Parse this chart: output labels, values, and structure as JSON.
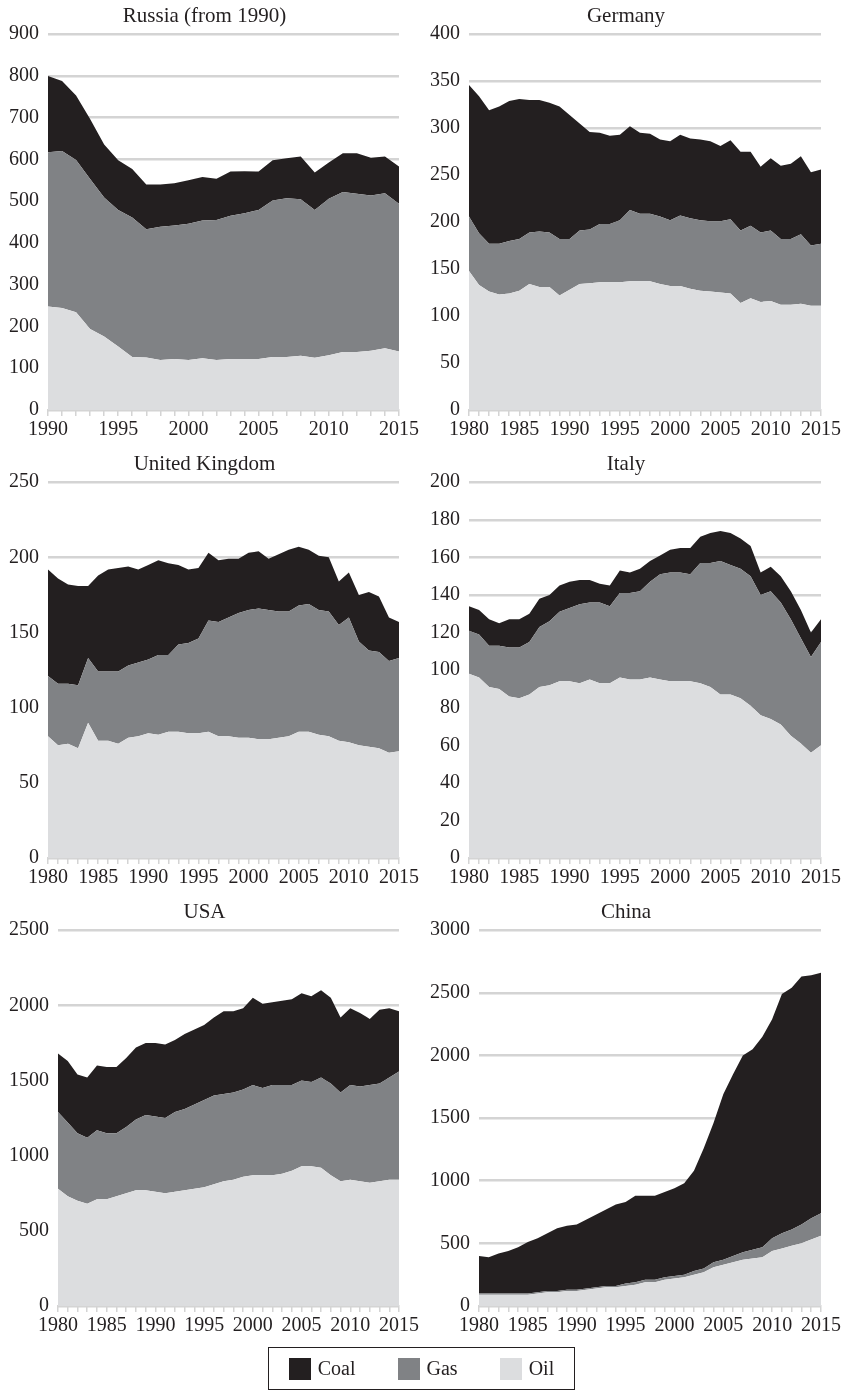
{
  "chart_data": [
    {
      "type": "area",
      "title": "Russia (from 1990)",
      "stacked": true,
      "grid": "y",
      "legend": "bottom",
      "x": [
        1990,
        1991,
        1992,
        1993,
        1994,
        1995,
        1996,
        1997,
        1998,
        1999,
        2000,
        2001,
        2002,
        2003,
        2004,
        2005,
        2006,
        2007,
        2008,
        2009,
        2010,
        2011,
        2012,
        2013,
        2014,
        2015
      ],
      "xlim": [
        1990,
        2015
      ],
      "xticks": [
        1990,
        {
          "value": 1991,
          "label": null
        },
        {
          "value": 1992,
          "label": null
        },
        {
          "value": 1993,
          "label": null
        },
        {
          "value": 1994,
          "label": null
        },
        1995,
        {
          "value": 1996,
          "label": null
        },
        {
          "value": 1997,
          "label": null
        },
        {
          "value": 1998,
          "label": null
        },
        {
          "value": 1999,
          "label": null
        },
        2000,
        {
          "value": 2001,
          "label": null
        },
        {
          "value": 2002,
          "label": null
        },
        {
          "value": 2003,
          "label": null
        },
        {
          "value": 2004,
          "label": null
        },
        2005,
        {
          "value": 2006,
          "label": null
        },
        {
          "value": 2007,
          "label": null
        },
        {
          "value": 2008,
          "label": null
        },
        {
          "value": 2009,
          "label": null
        },
        2010,
        {
          "value": 2011,
          "label": null
        },
        {
          "value": 2012,
          "label": null
        },
        {
          "value": 2013,
          "label": null
        },
        {
          "value": 2014,
          "label": null
        },
        2015
      ],
      "ylim": [
        0,
        900
      ],
      "yticks": [
        0,
        100,
        200,
        300,
        400,
        500,
        600,
        700,
        800,
        900
      ],
      "series": [
        {
          "name": "Oil",
          "color": "#dcdddf",
          "values": [
            248,
            244,
            234,
            194,
            176,
            152,
            127,
            126,
            120,
            122,
            120,
            124,
            120,
            122,
            122,
            122,
            127,
            127,
            130,
            125,
            131,
            139,
            139,
            142,
            148,
            140
          ]
        },
        {
          "name": "Gas",
          "color": "#808285",
          "values": [
            369,
            376,
            365,
            359,
            333,
            327,
            334,
            307,
            319,
            320,
            326,
            330,
            335,
            343,
            349,
            357,
            375,
            380,
            375,
            354,
            375,
            383,
            379,
            372,
            371,
            354
          ]
        },
        {
          "name": "Coal",
          "color": "#231f20",
          "values": [
            183,
            168,
            154,
            144,
            127,
            119,
            116,
            107,
            101,
            101,
            104,
            104,
            99,
            106,
            101,
            92,
            96,
            96,
            102,
            90,
            87,
            93,
            97,
            90,
            88,
            89
          ]
        }
      ]
    },
    {
      "type": "area",
      "title": "Germany",
      "stacked": true,
      "grid": "y",
      "x": [
        1980,
        1981,
        1982,
        1983,
        1984,
        1985,
        1986,
        1987,
        1988,
        1989,
        1990,
        1991,
        1992,
        1993,
        1994,
        1995,
        1996,
        1997,
        1998,
        1999,
        2000,
        2001,
        2002,
        2003,
        2004,
        2005,
        2006,
        2007,
        2008,
        2009,
        2010,
        2011,
        2012,
        2013,
        2014,
        2015
      ],
      "xlim": [
        1980,
        2015
      ],
      "xticks": [
        1980,
        {
          "value": 1981,
          "label": null
        },
        {
          "value": 1982,
          "label": null
        },
        {
          "value": 1983,
          "label": null
        },
        {
          "value": 1984,
          "label": null
        },
        1985,
        {
          "value": 1986,
          "label": null
        },
        {
          "value": 1987,
          "label": null
        },
        {
          "value": 1988,
          "label": null
        },
        {
          "value": 1989,
          "label": null
        },
        1990,
        {
          "value": 1991,
          "label": null
        },
        {
          "value": 1992,
          "label": null
        },
        {
          "value": 1993,
          "label": null
        },
        {
          "value": 1994,
          "label": null
        },
        1995,
        {
          "value": 1996,
          "label": null
        },
        {
          "value": 1997,
          "label": null
        },
        {
          "value": 1998,
          "label": null
        },
        {
          "value": 1999,
          "label": null
        },
        2000,
        {
          "value": 2001,
          "label": null
        },
        {
          "value": 2002,
          "label": null
        },
        {
          "value": 2003,
          "label": null
        },
        {
          "value": 2004,
          "label": null
        },
        2005,
        {
          "value": 2006,
          "label": null
        },
        {
          "value": 2007,
          "label": null
        },
        {
          "value": 2008,
          "label": null
        },
        {
          "value": 2009,
          "label": null
        },
        2010,
        {
          "value": 2011,
          "label": null
        },
        {
          "value": 2012,
          "label": null
        },
        {
          "value": 2013,
          "label": null
        },
        {
          "value": 2014,
          "label": null
        },
        2015
      ],
      "ylim": [
        0,
        400
      ],
      "yticks": [
        0,
        50,
        100,
        150,
        200,
        250,
        300,
        350,
        400
      ],
      "series": [
        {
          "color": "#dcdddf",
          "values": [
            148,
            133,
            126,
            123,
            124,
            127,
            134,
            131,
            131,
            122,
            128,
            134,
            135,
            136,
            136,
            136,
            137,
            137,
            137,
            134,
            132,
            132,
            129,
            127,
            126,
            125,
            124,
            114,
            119,
            115,
            116,
            112,
            112,
            113,
            111,
            111
          ]
        },
        {
          "color": "#808285",
          "values": [
            58,
            55,
            51,
            54,
            56,
            55,
            55,
            59,
            58,
            60,
            54,
            57,
            57,
            62,
            62,
            66,
            76,
            72,
            72,
            72,
            70,
            75,
            75,
            75,
            75,
            76,
            79,
            77,
            77,
            74,
            75,
            70,
            70,
            74,
            64,
            66
          ]
        },
        {
          "color": "#231f20",
          "values": [
            140,
            146,
            142,
            146,
            149,
            149,
            141,
            140,
            138,
            141,
            132,
            114,
            104,
            97,
            94,
            91,
            89,
            86,
            85,
            82,
            84,
            86,
            85,
            86,
            85,
            80,
            84,
            84,
            79,
            70,
            77,
            78,
            80,
            83,
            78,
            79
          ]
        }
      ]
    },
    {
      "type": "area",
      "title": "United Kingdom",
      "stacked": true,
      "grid": "y",
      "x": [
        1980,
        1981,
        1982,
        1983,
        1984,
        1985,
        1986,
        1987,
        1988,
        1989,
        1990,
        1991,
        1992,
        1993,
        1994,
        1995,
        1996,
        1997,
        1998,
        1999,
        2000,
        2001,
        2002,
        2003,
        2004,
        2005,
        2006,
        2007,
        2008,
        2009,
        2010,
        2011,
        2012,
        2013,
        2014,
        2015
      ],
      "xlim": [
        1980,
        2015
      ],
      "xticks": [
        1980,
        {
          "value": 1981,
          "label": null
        },
        {
          "value": 1982,
          "label": null
        },
        {
          "value": 1983,
          "label": null
        },
        {
          "value": 1984,
          "label": null
        },
        1985,
        {
          "value": 1986,
          "label": null
        },
        {
          "value": 1987,
          "label": null
        },
        {
          "value": 1988,
          "label": null
        },
        {
          "value": 1989,
          "label": null
        },
        1990,
        {
          "value": 1991,
          "label": null
        },
        {
          "value": 1992,
          "label": null
        },
        {
          "value": 1993,
          "label": null
        },
        {
          "value": 1994,
          "label": null
        },
        1995,
        {
          "value": 1996,
          "label": null
        },
        {
          "value": 1997,
          "label": null
        },
        {
          "value": 1998,
          "label": null
        },
        {
          "value": 1999,
          "label": null
        },
        2000,
        {
          "value": 2001,
          "label": null
        },
        {
          "value": 2002,
          "label": null
        },
        {
          "value": 2003,
          "label": null
        },
        {
          "value": 2004,
          "label": null
        },
        2005,
        {
          "value": 2006,
          "label": null
        },
        {
          "value": 2007,
          "label": null
        },
        {
          "value": 2008,
          "label": null
        },
        {
          "value": 2009,
          "label": null
        },
        2010,
        {
          "value": 2011,
          "label": null
        },
        {
          "value": 2012,
          "label": null
        },
        {
          "value": 2013,
          "label": null
        },
        {
          "value": 2014,
          "label": null
        },
        2015
      ],
      "ylim": [
        0,
        250
      ],
      "yticks": [
        0,
        50,
        100,
        150,
        200,
        250
      ],
      "series": [
        {
          "color": "#dcdddf",
          "values": [
            81,
            75,
            76,
            73,
            90,
            78,
            78,
            76,
            80,
            81,
            83,
            82,
            84,
            84,
            83,
            83,
            84,
            81,
            81,
            80,
            80,
            79,
            79,
            80,
            81,
            84,
            84,
            82,
            81,
            78,
            77,
            75,
            74,
            73,
            70,
            71
          ]
        },
        {
          "color": "#808285",
          "values": [
            40,
            41,
            40,
            42,
            43,
            46,
            46,
            48,
            48,
            49,
            49,
            53,
            51,
            58,
            60,
            63,
            74,
            76,
            79,
            83,
            85,
            87,
            86,
            84,
            83,
            84,
            85,
            83,
            83,
            77,
            83,
            69,
            64,
            64,
            61,
            62
          ]
        },
        {
          "color": "#231f20",
          "values": [
            71,
            70,
            66,
            66,
            48,
            64,
            68,
            69,
            66,
            62,
            63,
            63,
            61,
            53,
            49,
            47,
            45,
            41,
            39,
            36,
            38,
            38,
            34,
            38,
            41,
            39,
            36,
            36,
            36,
            29,
            30,
            31,
            39,
            37,
            29,
            24
          ]
        }
      ]
    },
    {
      "type": "area",
      "title": "Italy",
      "stacked": true,
      "grid": "y",
      "x": [
        1980,
        1981,
        1982,
        1983,
        1984,
        1985,
        1986,
        1987,
        1988,
        1989,
        1990,
        1991,
        1992,
        1993,
        1994,
        1995,
        1996,
        1997,
        1998,
        1999,
        2000,
        2001,
        2002,
        2003,
        2004,
        2005,
        2006,
        2007,
        2008,
        2009,
        2010,
        2011,
        2012,
        2013,
        2014,
        2015
      ],
      "xlim": [
        1980,
        2015
      ],
      "xticks": [
        1980,
        {
          "value": 1981,
          "label": null
        },
        {
          "value": 1982,
          "label": null
        },
        {
          "value": 1983,
          "label": null
        },
        {
          "value": 1984,
          "label": null
        },
        1985,
        {
          "value": 1986,
          "label": null
        },
        {
          "value": 1987,
          "label": null
        },
        {
          "value": 1988,
          "label": null
        },
        {
          "value": 1989,
          "label": null
        },
        1990,
        {
          "value": 1991,
          "label": null
        },
        {
          "value": 1992,
          "label": null
        },
        {
          "value": 1993,
          "label": null
        },
        {
          "value": 1994,
          "label": null
        },
        1995,
        {
          "value": 1996,
          "label": null
        },
        {
          "value": 1997,
          "label": null
        },
        {
          "value": 1998,
          "label": null
        },
        {
          "value": 1999,
          "label": null
        },
        2000,
        {
          "value": 2001,
          "label": null
        },
        {
          "value": 2002,
          "label": null
        },
        {
          "value": 2003,
          "label": null
        },
        {
          "value": 2004,
          "label": null
        },
        2005,
        {
          "value": 2006,
          "label": null
        },
        {
          "value": 2007,
          "label": null
        },
        {
          "value": 2008,
          "label": null
        },
        {
          "value": 2009,
          "label": null
        },
        2010,
        {
          "value": 2011,
          "label": null
        },
        {
          "value": 2012,
          "label": null
        },
        {
          "value": 2013,
          "label": null
        },
        {
          "value": 2014,
          "label": null
        },
        2015
      ],
      "ylim": [
        0,
        200
      ],
      "yticks": [
        0,
        20,
        40,
        60,
        80,
        100,
        120,
        140,
        160,
        180,
        200
      ],
      "series": [
        {
          "color": "#dcdddf",
          "values": [
            98,
            96,
            91,
            90,
            86,
            85,
            87,
            91,
            92,
            94,
            94,
            93,
            95,
            93,
            93,
            96,
            95,
            95,
            96,
            95,
            94,
            94,
            94,
            93,
            91,
            87,
            87,
            85,
            81,
            76,
            74,
            71,
            65,
            61,
            56,
            60
          ]
        },
        {
          "color": "#808285",
          "values": [
            23,
            23,
            22,
            23,
            26,
            27,
            28,
            32,
            34,
            37,
            39,
            42,
            41,
            43,
            41,
            45,
            46,
            47,
            51,
            56,
            58,
            58,
            57,
            64,
            66,
            71,
            69,
            69,
            69,
            64,
            68,
            65,
            62,
            56,
            51,
            55
          ]
        },
        {
          "color": "#231f20",
          "values": [
            13,
            13,
            14,
            12,
            15,
            15,
            15,
            15,
            14,
            14,
            14,
            13,
            12,
            10,
            11,
            12,
            11,
            12,
            11,
            10,
            12,
            13,
            14,
            14,
            16,
            16,
            17,
            16,
            16,
            12,
            13,
            14,
            15,
            15,
            13,
            12
          ]
        }
      ]
    },
    {
      "type": "area",
      "title": "USA",
      "stacked": true,
      "grid": "y",
      "x": [
        1980,
        1981,
        1982,
        1983,
        1984,
        1985,
        1986,
        1987,
        1988,
        1989,
        1990,
        1991,
        1992,
        1993,
        1994,
        1995,
        1996,
        1997,
        1998,
        1999,
        2000,
        2001,
        2002,
        2003,
        2004,
        2005,
        2006,
        2007,
        2008,
        2009,
        2010,
        2011,
        2012,
        2013,
        2014,
        2015
      ],
      "xlim": [
        1980,
        2015
      ],
      "xticks": [
        1980,
        {
          "value": 1981,
          "label": null
        },
        {
          "value": 1982,
          "label": null
        },
        {
          "value": 1983,
          "label": null
        },
        {
          "value": 1984,
          "label": null
        },
        1985,
        {
          "value": 1986,
          "label": null
        },
        {
          "value": 1987,
          "label": null
        },
        {
          "value": 1988,
          "label": null
        },
        {
          "value": 1989,
          "label": null
        },
        1990,
        {
          "value": 1991,
          "label": null
        },
        {
          "value": 1992,
          "label": null
        },
        {
          "value": 1993,
          "label": null
        },
        {
          "value": 1994,
          "label": null
        },
        1995,
        {
          "value": 1996,
          "label": null
        },
        {
          "value": 1997,
          "label": null
        },
        {
          "value": 1998,
          "label": null
        },
        {
          "value": 1999,
          "label": null
        },
        2000,
        {
          "value": 2001,
          "label": null
        },
        {
          "value": 2002,
          "label": null
        },
        {
          "value": 2003,
          "label": null
        },
        {
          "value": 2004,
          "label": null
        },
        2005,
        {
          "value": 2006,
          "label": null
        },
        {
          "value": 2007,
          "label": null
        },
        {
          "value": 2008,
          "label": null
        },
        {
          "value": 2009,
          "label": null
        },
        2010,
        {
          "value": 2011,
          "label": null
        },
        {
          "value": 2012,
          "label": null
        },
        {
          "value": 2013,
          "label": null
        },
        {
          "value": 2014,
          "label": null
        },
        2015
      ],
      "ylim": [
        0,
        2500
      ],
      "yticks": [
        0,
        500,
        1000,
        1500,
        2000,
        2500
      ],
      "series": [
        {
          "color": "#dcdddf",
          "values": [
            780,
            730,
            700,
            680,
            710,
            710,
            730,
            750,
            770,
            770,
            760,
            750,
            760,
            770,
            780,
            790,
            810,
            830,
            840,
            860,
            870,
            870,
            870,
            880,
            900,
            930,
            930,
            920,
            870,
            830,
            840,
            830,
            820,
            830,
            840,
            840
          ]
        },
        {
          "color": "#808285",
          "values": [
            510,
            490,
            450,
            440,
            460,
            440,
            420,
            440,
            470,
            500,
            500,
            500,
            530,
            540,
            560,
            580,
            590,
            580,
            580,
            580,
            600,
            580,
            600,
            590,
            570,
            570,
            560,
            600,
            610,
            590,
            630,
            630,
            650,
            650,
            680,
            720
          ]
        },
        {
          "color": "#231f20",
          "values": [
            390,
            410,
            390,
            400,
            430,
            440,
            440,
            460,
            480,
            480,
            490,
            490,
            480,
            500,
            500,
            500,
            520,
            550,
            540,
            540,
            580,
            560,
            550,
            560,
            570,
            580,
            570,
            580,
            570,
            500,
            510,
            490,
            440,
            490,
            460,
            400
          ]
        }
      ]
    },
    {
      "type": "area",
      "title": "China",
      "stacked": true,
      "grid": "y",
      "x": [
        1980,
        1981,
        1982,
        1983,
        1984,
        1985,
        1986,
        1987,
        1988,
        1989,
        1990,
        1991,
        1992,
        1993,
        1994,
        1995,
        1996,
        1997,
        1998,
        1999,
        2000,
        2001,
        2002,
        2003,
        2004,
        2005,
        2006,
        2007,
        2008,
        2009,
        2010,
        2011,
        2012,
        2013,
        2014,
        2015
      ],
      "xlim": [
        1980,
        2015
      ],
      "xticks": [
        1980,
        {
          "value": 1981,
          "label": null
        },
        {
          "value": 1982,
          "label": null
        },
        {
          "value": 1983,
          "label": null
        },
        {
          "value": 1984,
          "label": null
        },
        1985,
        {
          "value": 1986,
          "label": null
        },
        {
          "value": 1987,
          "label": null
        },
        {
          "value": 1988,
          "label": null
        },
        {
          "value": 1989,
          "label": null
        },
        1990,
        {
          "value": 1991,
          "label": null
        },
        {
          "value": 1992,
          "label": null
        },
        {
          "value": 1993,
          "label": null
        },
        {
          "value": 1994,
          "label": null
        },
        1995,
        {
          "value": 1996,
          "label": null
        },
        {
          "value": 1997,
          "label": null
        },
        {
          "value": 1998,
          "label": null
        },
        {
          "value": 1999,
          "label": null
        },
        2000,
        {
          "value": 2001,
          "label": null
        },
        {
          "value": 2002,
          "label": null
        },
        {
          "value": 2003,
          "label": null
        },
        {
          "value": 2004,
          "label": null
        },
        2005,
        {
          "value": 2006,
          "label": null
        },
        {
          "value": 2007,
          "label": null
        },
        {
          "value": 2008,
          "label": null
        },
        {
          "value": 2009,
          "label": null
        },
        2010,
        {
          "value": 2011,
          "label": null
        },
        {
          "value": 2012,
          "label": null
        },
        {
          "value": 2013,
          "label": null
        },
        {
          "value": 2014,
          "label": null
        },
        2015
      ],
      "ylim": [
        0,
        3000
      ],
      "yticks": [
        0,
        500,
        1000,
        1500,
        2000,
        2500,
        3000
      ],
      "series": [
        {
          "color": "#dcdddf",
          "values": [
            90,
            90,
            90,
            90,
            90,
            90,
            100,
            110,
            110,
            120,
            120,
            130,
            140,
            150,
            150,
            160,
            170,
            190,
            190,
            210,
            220,
            230,
            250,
            270,
            310,
            330,
            350,
            370,
            380,
            390,
            440,
            460,
            480,
            500,
            530,
            560
          ]
        },
        {
          "color": "#808285",
          "values": [
            10,
            10,
            10,
            10,
            10,
            10,
            10,
            10,
            10,
            10,
            10,
            10,
            10,
            10,
            10,
            20,
            20,
            20,
            20,
            20,
            20,
            20,
            30,
            30,
            40,
            40,
            50,
            60,
            70,
            80,
            100,
            120,
            130,
            150,
            170,
            180
          ]
        },
        {
          "color": "#231f20",
          "values": [
            300,
            290,
            320,
            340,
            370,
            410,
            430,
            460,
            500,
            510,
            520,
            550,
            580,
            610,
            650,
            650,
            690,
            670,
            670,
            680,
            700,
            730,
            800,
            960,
            1110,
            1320,
            1450,
            1570,
            1600,
            1680,
            1750,
            1910,
            1930,
            1980,
            1940,
            1920
          ]
        }
      ]
    }
  ]
}
